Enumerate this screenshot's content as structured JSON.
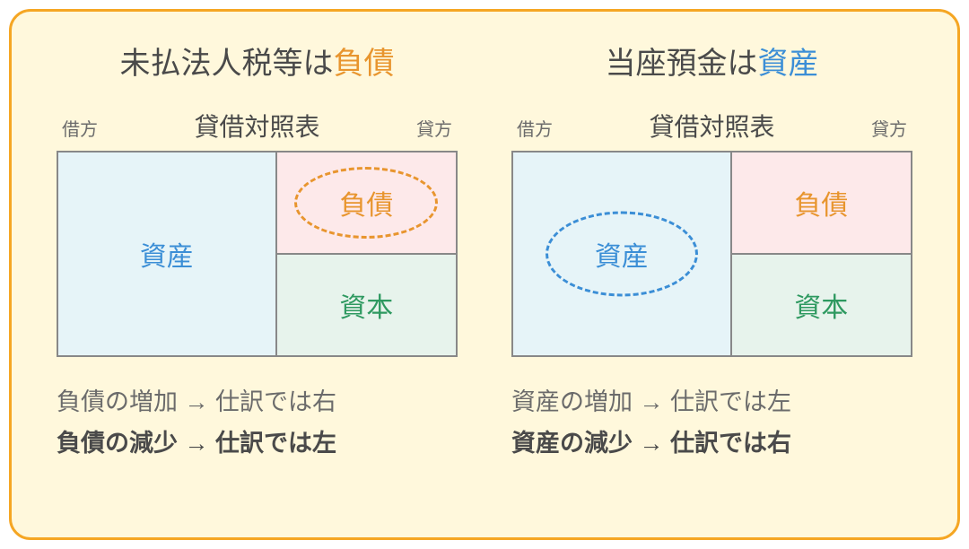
{
  "card": {
    "background_color": "#fff8dc",
    "border_color": "#f5a623"
  },
  "colors": {
    "text_gray": "#6b6b6b",
    "text_dark": "#4a4a4a",
    "asset_blue": "#3b8ed6",
    "liability_orange": "#e8952e",
    "capital_green": "#2e9960",
    "table_border": "#888888",
    "asset_bg": "#e6f4f8",
    "liability_bg": "#fde9ea",
    "capital_bg": "#e7f3ec"
  },
  "panels": [
    {
      "title_prefix": "未払法人税等は",
      "title_highlight": "負債",
      "title_highlight_color": "liability_orange",
      "balance_sheet": {
        "header_left": "借方",
        "header_center": "貸借対照表",
        "header_right": "貸方",
        "asset_label": "資産",
        "liability_label": "負債",
        "capital_label": "資本",
        "circled": "liability"
      },
      "note_line1": "負債の増加 → 仕訳では右",
      "note_line2": "負債の減少 → 仕訳では左"
    },
    {
      "title_prefix": "当座預金は",
      "title_highlight": "資産",
      "title_highlight_color": "asset_blue",
      "balance_sheet": {
        "header_left": "借方",
        "header_center": "貸借対照表",
        "header_right": "貸方",
        "asset_label": "資産",
        "liability_label": "負債",
        "capital_label": "資本",
        "circled": "asset"
      },
      "note_line1": "資産の増加 → 仕訳では左",
      "note_line2": "資産の減少 → 仕訳では右"
    }
  ]
}
